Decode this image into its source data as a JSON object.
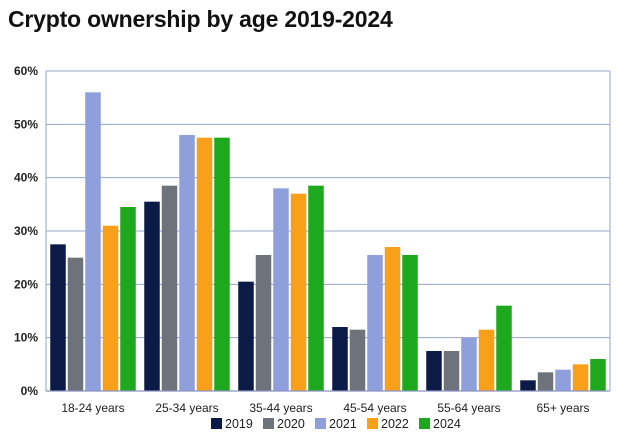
{
  "chart_data": {
    "type": "bar",
    "title": "Crypto ownership by age 2019-2024",
    "categories": [
      "18-24 years",
      "25-34 years",
      "35-44 years",
      "45-54 years",
      "55-64 years",
      "65+ years"
    ],
    "series": [
      {
        "name": "2019",
        "color": "#0b1a46",
        "values": [
          27.5,
          35.5,
          20.5,
          12,
          7.5,
          2
        ]
      },
      {
        "name": "2020",
        "color": "#6e737b",
        "values": [
          25,
          38.5,
          25.5,
          11.5,
          7.5,
          3.5
        ]
      },
      {
        "name": "2021",
        "color": "#8e9fdb",
        "values": [
          56,
          48,
          38,
          25.5,
          10,
          4
        ]
      },
      {
        "name": "2022",
        "color": "#f8a01a",
        "values": [
          31,
          47.5,
          37,
          27,
          11.5,
          5
        ]
      },
      {
        "name": "2024",
        "color": "#1da81d",
        "values": [
          34.5,
          47.5,
          38.5,
          25.5,
          16,
          6
        ]
      }
    ],
    "yticks": [
      "0%",
      "10%",
      "20%",
      "30%",
      "40%",
      "50%",
      "60%"
    ],
    "ylim": [
      0,
      60
    ],
    "grid": true,
    "legend_position": "bottom"
  }
}
